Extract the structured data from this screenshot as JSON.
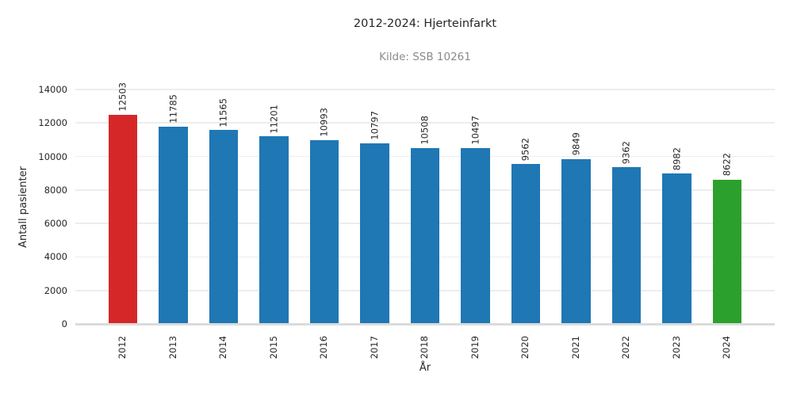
{
  "chart_data": {
    "type": "bar",
    "title": "2012-2024: Hjerteinfarkt",
    "subtitle": "Kilde: SSB 10261",
    "xlabel": "År",
    "ylabel": "Antall pasienter",
    "categories": [
      "2012",
      "2013",
      "2014",
      "2015",
      "2016",
      "2017",
      "2018",
      "2019",
      "2020",
      "2021",
      "2022",
      "2023",
      "2024"
    ],
    "values": [
      12503,
      11785,
      11565,
      11201,
      10993,
      10797,
      10508,
      10497,
      9562,
      9849,
      9362,
      8982,
      8622
    ],
    "bar_colors": [
      "#d62728",
      "#1f77b4",
      "#1f77b4",
      "#1f77b4",
      "#1f77b4",
      "#1f77b4",
      "#1f77b4",
      "#1f77b4",
      "#1f77b4",
      "#1f77b4",
      "#1f77b4",
      "#1f77b4",
      "#2ca02c"
    ],
    "value_labels": [
      "12503",
      "11785",
      "11565",
      "11201",
      "10993",
      "10797",
      "10508",
      "10497",
      "9562",
      "9849",
      "9362",
      "8982",
      "8622"
    ],
    "yticks": [
      0,
      2000,
      4000,
      6000,
      8000,
      10000,
      12000,
      14000
    ],
    "ylim": [
      0,
      14000
    ],
    "grid": true,
    "legend": "none",
    "colors": {
      "highlight_first": "#d62728",
      "default_bar": "#1f77b4",
      "highlight_last": "#2ca02c",
      "gridline": "#ededed",
      "axis_line": "#dcdcdc",
      "text": "#262626",
      "subtitle_text": "#8a8a8a",
      "background": "#ffffff"
    }
  }
}
